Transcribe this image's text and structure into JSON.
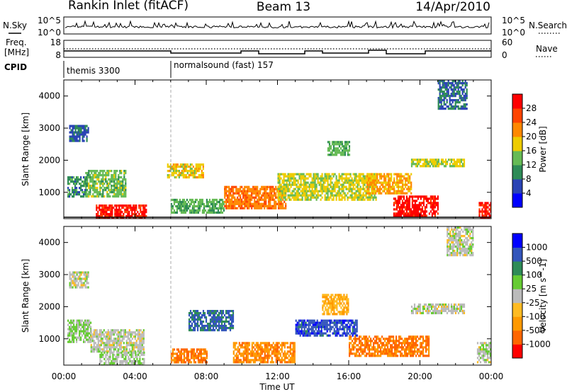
{
  "header": {
    "site": "Rankin Inlet (fitACF)",
    "beam": "Beam 13",
    "date": "14/Apr/2010"
  },
  "aux": {
    "nsky_label": "N.Sky",
    "nsky_ticks": [
      "10^5",
      "10^0"
    ],
    "nsearch_label": "N.Search",
    "nsearch_ticks": [
      "10^5",
      "10^0"
    ],
    "freq_label_1": "Freq.",
    "freq_label_2": "[MHz]",
    "freq_ticks": [
      "18",
      "8"
    ],
    "nave_label": "Nave",
    "nave_ticks": [
      "60",
      "0"
    ],
    "cpid_label": "CPID",
    "cpid_segments": [
      {
        "label": "themis 3300",
        "start": 0,
        "end": 6
      },
      {
        "label": "normalsound (fast) 157",
        "start": 6,
        "end": 24
      }
    ]
  },
  "xaxis": {
    "label": "Time UT",
    "ticks": [
      "00:00",
      "04:00",
      "08:00",
      "12:00",
      "16:00",
      "20:00",
      "00:00"
    ]
  },
  "colors": {
    "power": [
      "#0000ff",
      "#2a43b5",
      "#2e8b57",
      "#66bb55",
      "#eecc00",
      "#ff8800",
      "#ff4400",
      "#ff0000"
    ],
    "velocity": [
      "#ff0000",
      "#ff6600",
      "#ff9900",
      "#ffbb22",
      "#bbbbbb",
      "#66cc33",
      "#2e8b57",
      "#3355bb",
      "#0000ff"
    ]
  },
  "chart_data": [
    {
      "type": "heatmap",
      "title": "",
      "xlabel": "",
      "ylabel": "Slant Range [km]",
      "xlim": [
        0,
        24
      ],
      "ylim": [
        180,
        4500
      ],
      "ytick_labels": [
        "1000",
        "2000",
        "3000",
        "4000"
      ],
      "yticks": [
        1000,
        2000,
        3000,
        4000
      ],
      "colorbar": {
        "label": "Power [dB]",
        "tick_labels": [
          "4",
          "8",
          "12",
          "16",
          "20",
          "24",
          "28"
        ],
        "range": [
          0,
          32
        ]
      },
      "regions": [
        {
          "t0": 1.8,
          "t1": 4.6,
          "r0": 200,
          "r1": 620,
          "value": 29
        },
        {
          "t0": 1.2,
          "t1": 3.5,
          "r0": 900,
          "r1": 1700,
          "value": 14
        },
        {
          "t0": 0.2,
          "t1": 1.3,
          "r0": 850,
          "r1": 1500,
          "value": 10
        },
        {
          "t0": 0.3,
          "t1": 1.4,
          "r0": 2600,
          "r1": 3100,
          "value": 7
        },
        {
          "t0": 5.8,
          "t1": 7.8,
          "r0": 1500,
          "r1": 1900,
          "value": 18
        },
        {
          "t0": 6.0,
          "t1": 9.0,
          "r0": 350,
          "r1": 800,
          "value": 13
        },
        {
          "t0": 9.0,
          "t1": 12.5,
          "r0": 500,
          "r1": 1200,
          "value": 23
        },
        {
          "t0": 12.0,
          "t1": 17.5,
          "r0": 800,
          "r1": 1600,
          "value": 17
        },
        {
          "t0": 14.8,
          "t1": 16.0,
          "r0": 2200,
          "r1": 2600,
          "value": 13
        },
        {
          "t0": 17.0,
          "t1": 19.5,
          "r0": 1000,
          "r1": 1600,
          "value": 21
        },
        {
          "t0": 18.5,
          "t1": 21.0,
          "r0": 300,
          "r1": 900,
          "value": 30
        },
        {
          "t0": 19.5,
          "t1": 22.5,
          "r0": 1800,
          "r1": 2050,
          "value": 17
        },
        {
          "t0": 21.0,
          "t1": 22.6,
          "r0": 3600,
          "r1": 4500,
          "value": 8
        },
        {
          "t0": 23.3,
          "t1": 24.0,
          "r0": 200,
          "r1": 700,
          "value": 29
        }
      ]
    },
    {
      "type": "heatmap",
      "title": "",
      "xlabel": "Time UT",
      "ylabel": "Slant Range [km]",
      "xlim": [
        0,
        24
      ],
      "ylim": [
        180,
        4500
      ],
      "ytick_labels": [
        "1000",
        "2000",
        "3000",
        "4000"
      ],
      "yticks": [
        1000,
        2000,
        3000,
        4000
      ],
      "colorbar": {
        "label": "Velocity [m s^-1]",
        "tick_labels": [
          "1000",
          "500",
          "100",
          "25",
          "-25",
          "-100",
          "-500",
          "-1000"
        ],
        "range": [
          -1000,
          1000
        ]
      },
      "regions": [
        {
          "t0": 0.2,
          "t1": 1.5,
          "r0": 900,
          "r1": 1600,
          "value": 150
        },
        {
          "t0": 1.5,
          "t1": 4.5,
          "r0": 600,
          "r1": 1300,
          "value": 0
        },
        {
          "t0": 0.3,
          "t1": 1.4,
          "r0": 2600,
          "r1": 3100,
          "value": 0
        },
        {
          "t0": 2.0,
          "t1": 4.5,
          "r0": 200,
          "r1": 600,
          "value": 80
        },
        {
          "t0": 6.0,
          "t1": 8.0,
          "r0": 300,
          "r1": 700,
          "value": -600
        },
        {
          "t0": 7.0,
          "t1": 9.5,
          "r0": 1300,
          "r1": 1900,
          "value": 600
        },
        {
          "t0": 9.5,
          "t1": 13.0,
          "r0": 300,
          "r1": 900,
          "value": -500
        },
        {
          "t0": 13.0,
          "t1": 16.5,
          "r0": 1100,
          "r1": 1600,
          "value": 700
        },
        {
          "t0": 14.5,
          "t1": 16.0,
          "r0": 1800,
          "r1": 2400,
          "value": -300
        },
        {
          "t0": 16.0,
          "t1": 20.5,
          "r0": 500,
          "r1": 1100,
          "value": -600
        },
        {
          "t0": 19.5,
          "t1": 22.5,
          "r0": 1800,
          "r1": 2100,
          "value": 0
        },
        {
          "t0": 21.5,
          "t1": 23.0,
          "r0": 3600,
          "r1": 4500,
          "value": 0
        },
        {
          "t0": 23.2,
          "t1": 24.0,
          "r0": 300,
          "r1": 900,
          "value": 50
        }
      ]
    }
  ]
}
